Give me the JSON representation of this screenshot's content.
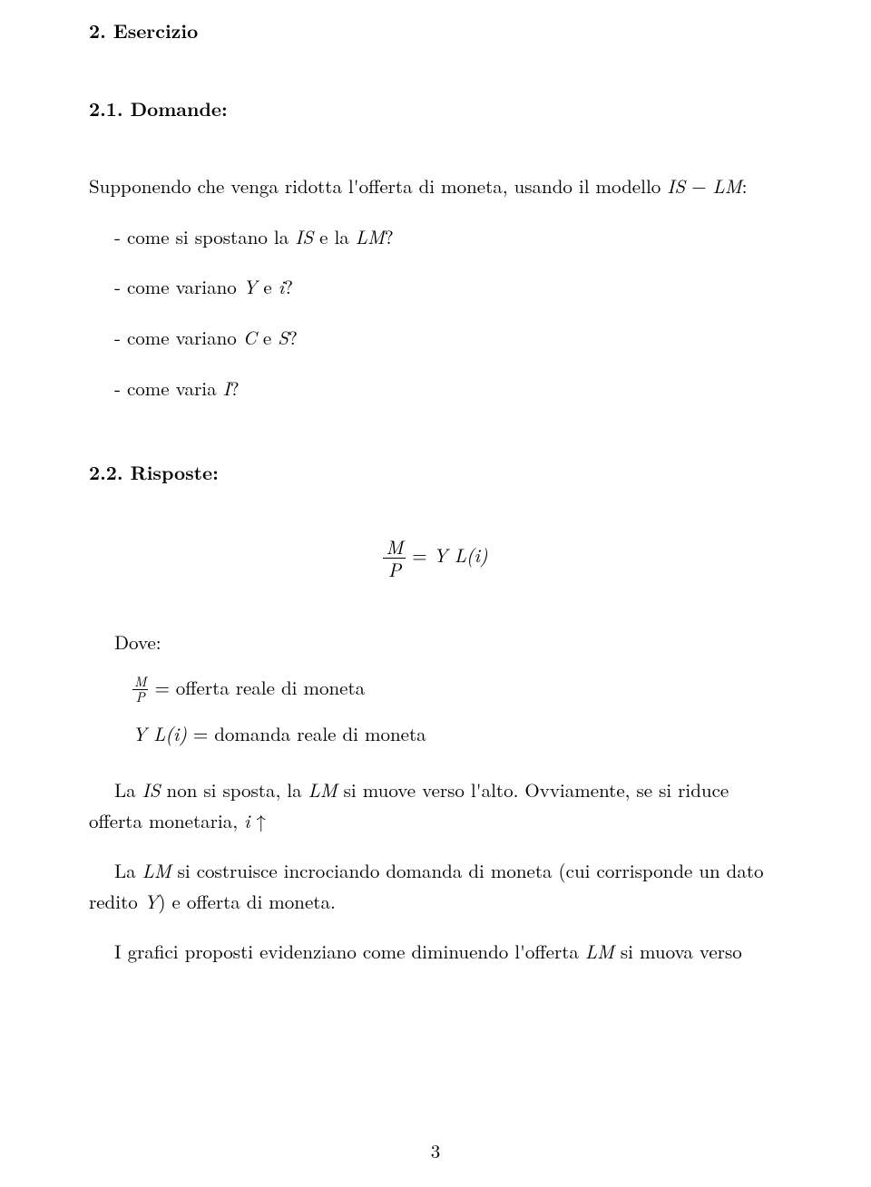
{
  "section": {
    "heading": "2. Esercizio"
  },
  "sub1": {
    "heading": "2.1. Domande:",
    "intro_pre": "Supponendo che venga ridotta l'offerta di moneta, usando il modello ",
    "intro_is": "IS",
    "intro_minus": " − ",
    "intro_lm": "LM",
    "intro_post": ":",
    "q1_pre": "- come si spostano la ",
    "q1_is": "IS",
    "q1_mid": " e la ",
    "q1_lm": "LM",
    "q1_post": "?",
    "q2_pre": "- come variano ",
    "q2_y": "Y",
    "q2_mid": " e ",
    "q2_i": "i",
    "q2_post": "?",
    "q3_pre": "- come variano ",
    "q3_c": "C",
    "q3_mid": " e ",
    "q3_s": "S",
    "q3_post": "?",
    "q4_pre": "- come varia ",
    "q4_i": "I",
    "q4_post": "?"
  },
  "sub2": {
    "heading": "2.2. Risposte:",
    "eq_num": "M",
    "eq_den": "P",
    "eq_eqs": " = ",
    "eq_rhs": "Y L(i)",
    "dove": "Dove:",
    "def1_num": "M",
    "def1_den": "P",
    "def1_txt": " = offerta reale di moneta",
    "def2_lhs": "Y L(i)",
    "def2_txt": " = domanda reale di moneta",
    "p1_a": "La ",
    "p1_is": "IS",
    "p1_b": " non si sposta, la ",
    "p1_lm": "LM",
    "p1_c": " si muove verso l'alto. Ovviamente, se si riduce",
    "p1_line2_a": "offerta monetaria, ",
    "p1_line2_i": "i",
    "p1_line2_arrow": " ↑",
    "p2_a": "La ",
    "p2_lm": "LM",
    "p2_b": " si costruisce incrociando domanda di moneta (cui corrisponde un dato",
    "p2_line2_a": "redito ",
    "p2_line2_y": "Y",
    "p2_line2_b": ") e offerta di moneta.",
    "p3_a": "I grafici proposti evidenziano come diminuendo l'offerta ",
    "p3_lm": "LM",
    "p3_b": " si muova verso"
  },
  "page_number": "3"
}
